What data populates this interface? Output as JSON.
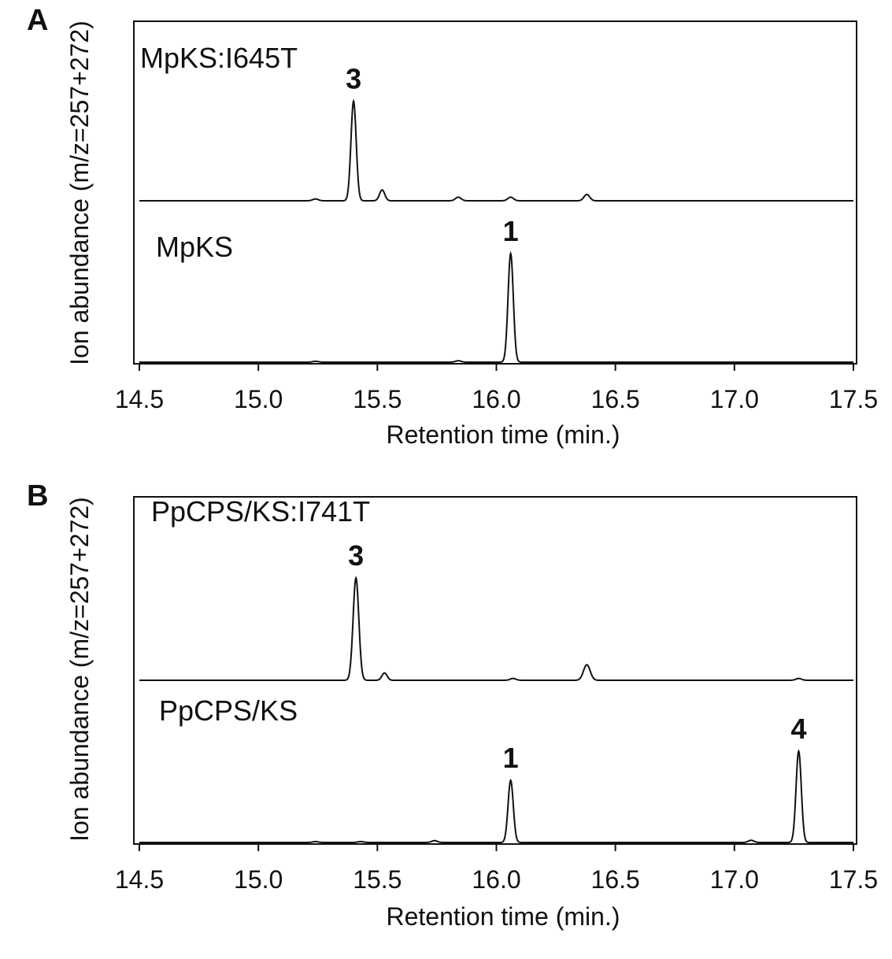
{
  "chart_data": [
    {
      "panel": "A",
      "type": "line",
      "xlabel": "Retention time (min.)",
      "ylabel": "Ion abundance (m/z=257+272)",
      "xlim": [
        14.5,
        17.5
      ],
      "xticks": [
        "14.5",
        "15.0",
        "15.5",
        "16.0",
        "16.5",
        "17.0",
        "17.5"
      ],
      "series": [
        {
          "name": "MpKS:I645T",
          "baseline": 0.0,
          "peaks": [
            {
              "x": 15.24,
              "y": 0.01,
              "w": 0.012
            },
            {
              "x": 15.4,
              "y": 0.55,
              "w": 0.011
            },
            {
              "x": 15.52,
              "y": 0.06,
              "w": 0.011
            },
            {
              "x": 15.84,
              "y": 0.02,
              "w": 0.012
            },
            {
              "x": 16.06,
              "y": 0.02,
              "w": 0.012
            },
            {
              "x": 16.38,
              "y": 0.035,
              "w": 0.012
            }
          ],
          "annotations": [
            {
              "label": "3",
              "x": 15.4
            }
          ]
        },
        {
          "name": "MpKS",
          "baseline": 0.0,
          "peaks": [
            {
              "x": 15.24,
              "y": 0.005,
              "w": 0.012
            },
            {
              "x": 15.84,
              "y": 0.008,
              "w": 0.012
            },
            {
              "x": 16.06,
              "y": 0.6,
              "w": 0.011
            }
          ],
          "annotations": [
            {
              "label": "1",
              "x": 16.06
            }
          ]
        }
      ]
    },
    {
      "panel": "B",
      "type": "line",
      "xlabel": "Retention time (min.)",
      "ylabel": "Ion abundance (m/z=257+272)",
      "xlim": [
        14.5,
        17.5
      ],
      "xticks": [
        "14.5",
        "15.0",
        "15.5",
        "16.0",
        "16.5",
        "17.0",
        "17.5"
      ],
      "series": [
        {
          "name": "PpCPS/KS:I741T",
          "baseline": 0.0,
          "peaks": [
            {
              "x": 15.41,
              "y": 0.56,
              "w": 0.012
            },
            {
              "x": 15.53,
              "y": 0.04,
              "w": 0.011
            },
            {
              "x": 16.07,
              "y": 0.01,
              "w": 0.012
            },
            {
              "x": 16.38,
              "y": 0.085,
              "w": 0.014
            },
            {
              "x": 17.27,
              "y": 0.01,
              "w": 0.012
            }
          ],
          "annotations": [
            {
              "label": "3",
              "x": 15.41
            }
          ]
        },
        {
          "name": "PpCPS/KS",
          "baseline": 0.0,
          "peaks": [
            {
              "x": 15.24,
              "y": 0.005,
              "w": 0.012
            },
            {
              "x": 15.43,
              "y": 0.005,
              "w": 0.012
            },
            {
              "x": 15.74,
              "y": 0.01,
              "w": 0.012
            },
            {
              "x": 16.06,
              "y": 0.34,
              "w": 0.011
            },
            {
              "x": 17.07,
              "y": 0.012,
              "w": 0.012
            },
            {
              "x": 17.27,
              "y": 0.5,
              "w": 0.011
            }
          ],
          "annotations": [
            {
              "label": "1",
              "x": 16.06
            },
            {
              "label": "4",
              "x": 17.27
            }
          ]
        }
      ]
    }
  ]
}
